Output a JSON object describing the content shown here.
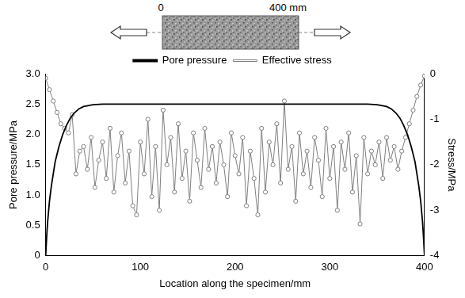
{
  "chart_data": {
    "type": "line",
    "annotations": [
      "0",
      "400 mm"
    ],
    "x_label": "Location along the specimen/mm",
    "y_label": "Pore pressure/MPa",
    "y2_label": "Stress/MPa",
    "xlim": [
      0,
      400
    ],
    "xticks": [
      0,
      100,
      200,
      300,
      400
    ],
    "ylim": [
      0,
      3
    ],
    "yticks": [
      0,
      0.5,
      {
        "value": 1,
        "label": "1.0"
      },
      1.5,
      {
        "value": 2,
        "label": "2.0"
      },
      2.5,
      {
        "value": 3,
        "label": "3.0"
      }
    ],
    "y2lim": [
      -4,
      0
    ],
    "y2ticks": [
      -4,
      -3,
      -2,
      -1,
      0
    ],
    "grid": false,
    "legend": "top",
    "series": [
      {
        "name": "Pore pressure",
        "color": "#000000",
        "axis": "y",
        "marker": "none",
        "line_style": "solid",
        "x": [
          0,
          1,
          2,
          4,
          6,
          8,
          10,
          14,
          18,
          22,
          26,
          30,
          35,
          40,
          50,
          60,
          80,
          100,
          150,
          200,
          250,
          300,
          340,
          350,
          360,
          365,
          370,
          374,
          378,
          382,
          386,
          390,
          392,
          394,
          396,
          398,
          399,
          400
        ],
        "values": [
          0,
          0.3,
          0.55,
          0.9,
          1.15,
          1.35,
          1.55,
          1.8,
          2.0,
          2.15,
          2.27,
          2.35,
          2.42,
          2.46,
          2.49,
          2.5,
          2.5,
          2.5,
          2.5,
          2.5,
          2.5,
          2.5,
          2.5,
          2.49,
          2.46,
          2.42,
          2.35,
          2.27,
          2.15,
          2.0,
          1.8,
          1.55,
          1.35,
          1.15,
          0.9,
          0.55,
          0.3,
          0
        ]
      },
      {
        "name": "Effective stress",
        "color": "#808080",
        "axis": "y2",
        "marker": "circle",
        "line_style": "solid",
        "x": [
          0,
          4,
          8,
          12,
          16,
          20,
          24,
          28,
          32,
          36,
          40,
          44,
          48,
          52,
          56,
          60,
          64,
          68,
          72,
          76,
          80,
          84,
          88,
          92,
          96,
          100,
          104,
          108,
          112,
          116,
          120,
          124,
          128,
          132,
          136,
          140,
          144,
          148,
          152,
          156,
          160,
          164,
          168,
          172,
          176,
          180,
          184,
          188,
          192,
          196,
          200,
          204,
          208,
          212,
          216,
          220,
          224,
          228,
          232,
          236,
          240,
          244,
          248,
          252,
          256,
          260,
          264,
          268,
          272,
          276,
          280,
          284,
          288,
          292,
          296,
          300,
          304,
          308,
          312,
          316,
          320,
          324,
          328,
          332,
          336,
          340,
          344,
          348,
          352,
          356,
          360,
          364,
          368,
          372,
          376,
          380,
          384,
          388,
          392,
          396,
          400
        ],
        "values": [
          -0.1,
          -0.35,
          -0.6,
          -0.85,
          -1.1,
          -1.2,
          -1.3,
          -0.9,
          -2.2,
          -1.7,
          -1.6,
          -2.1,
          -1.4,
          -2.5,
          -1.9,
          -1.5,
          -2.3,
          -1.2,
          -2.6,
          -1.8,
          -1.3,
          -2.4,
          -1.7,
          -2.9,
          -3.1,
          -1.5,
          -2.2,
          -1.0,
          -2.7,
          -1.6,
          -3.0,
          -0.8,
          -2.0,
          -1.4,
          -2.6,
          -1.1,
          -2.3,
          -1.7,
          -2.8,
          -1.3,
          -1.9,
          -2.5,
          -1.2,
          -2.1,
          -1.6,
          -2.4,
          -1.5,
          -2.0,
          -2.7,
          -1.3,
          -1.8,
          -2.2,
          -1.4,
          -2.9,
          -1.7,
          -2.3,
          -3.1,
          -1.2,
          -2.6,
          -1.5,
          -2.0,
          -1.1,
          -2.4,
          -0.6,
          -2.1,
          -1.6,
          -2.8,
          -1.3,
          -2.2,
          -1.7,
          -2.5,
          -1.4,
          -1.9,
          -2.7,
          -1.2,
          -2.3,
          -1.6,
          -3.0,
          -1.5,
          -2.1,
          -1.3,
          -2.6,
          -1.8,
          -3.3,
          -1.4,
          -2.2,
          -1.7,
          -2.0,
          -1.5,
          -2.3,
          -1.4,
          -1.9,
          -1.6,
          -2.1,
          -1.7,
          -1.4,
          -1.1,
          -0.8,
          -0.5,
          -0.25,
          -0.05
        ]
      }
    ]
  }
}
